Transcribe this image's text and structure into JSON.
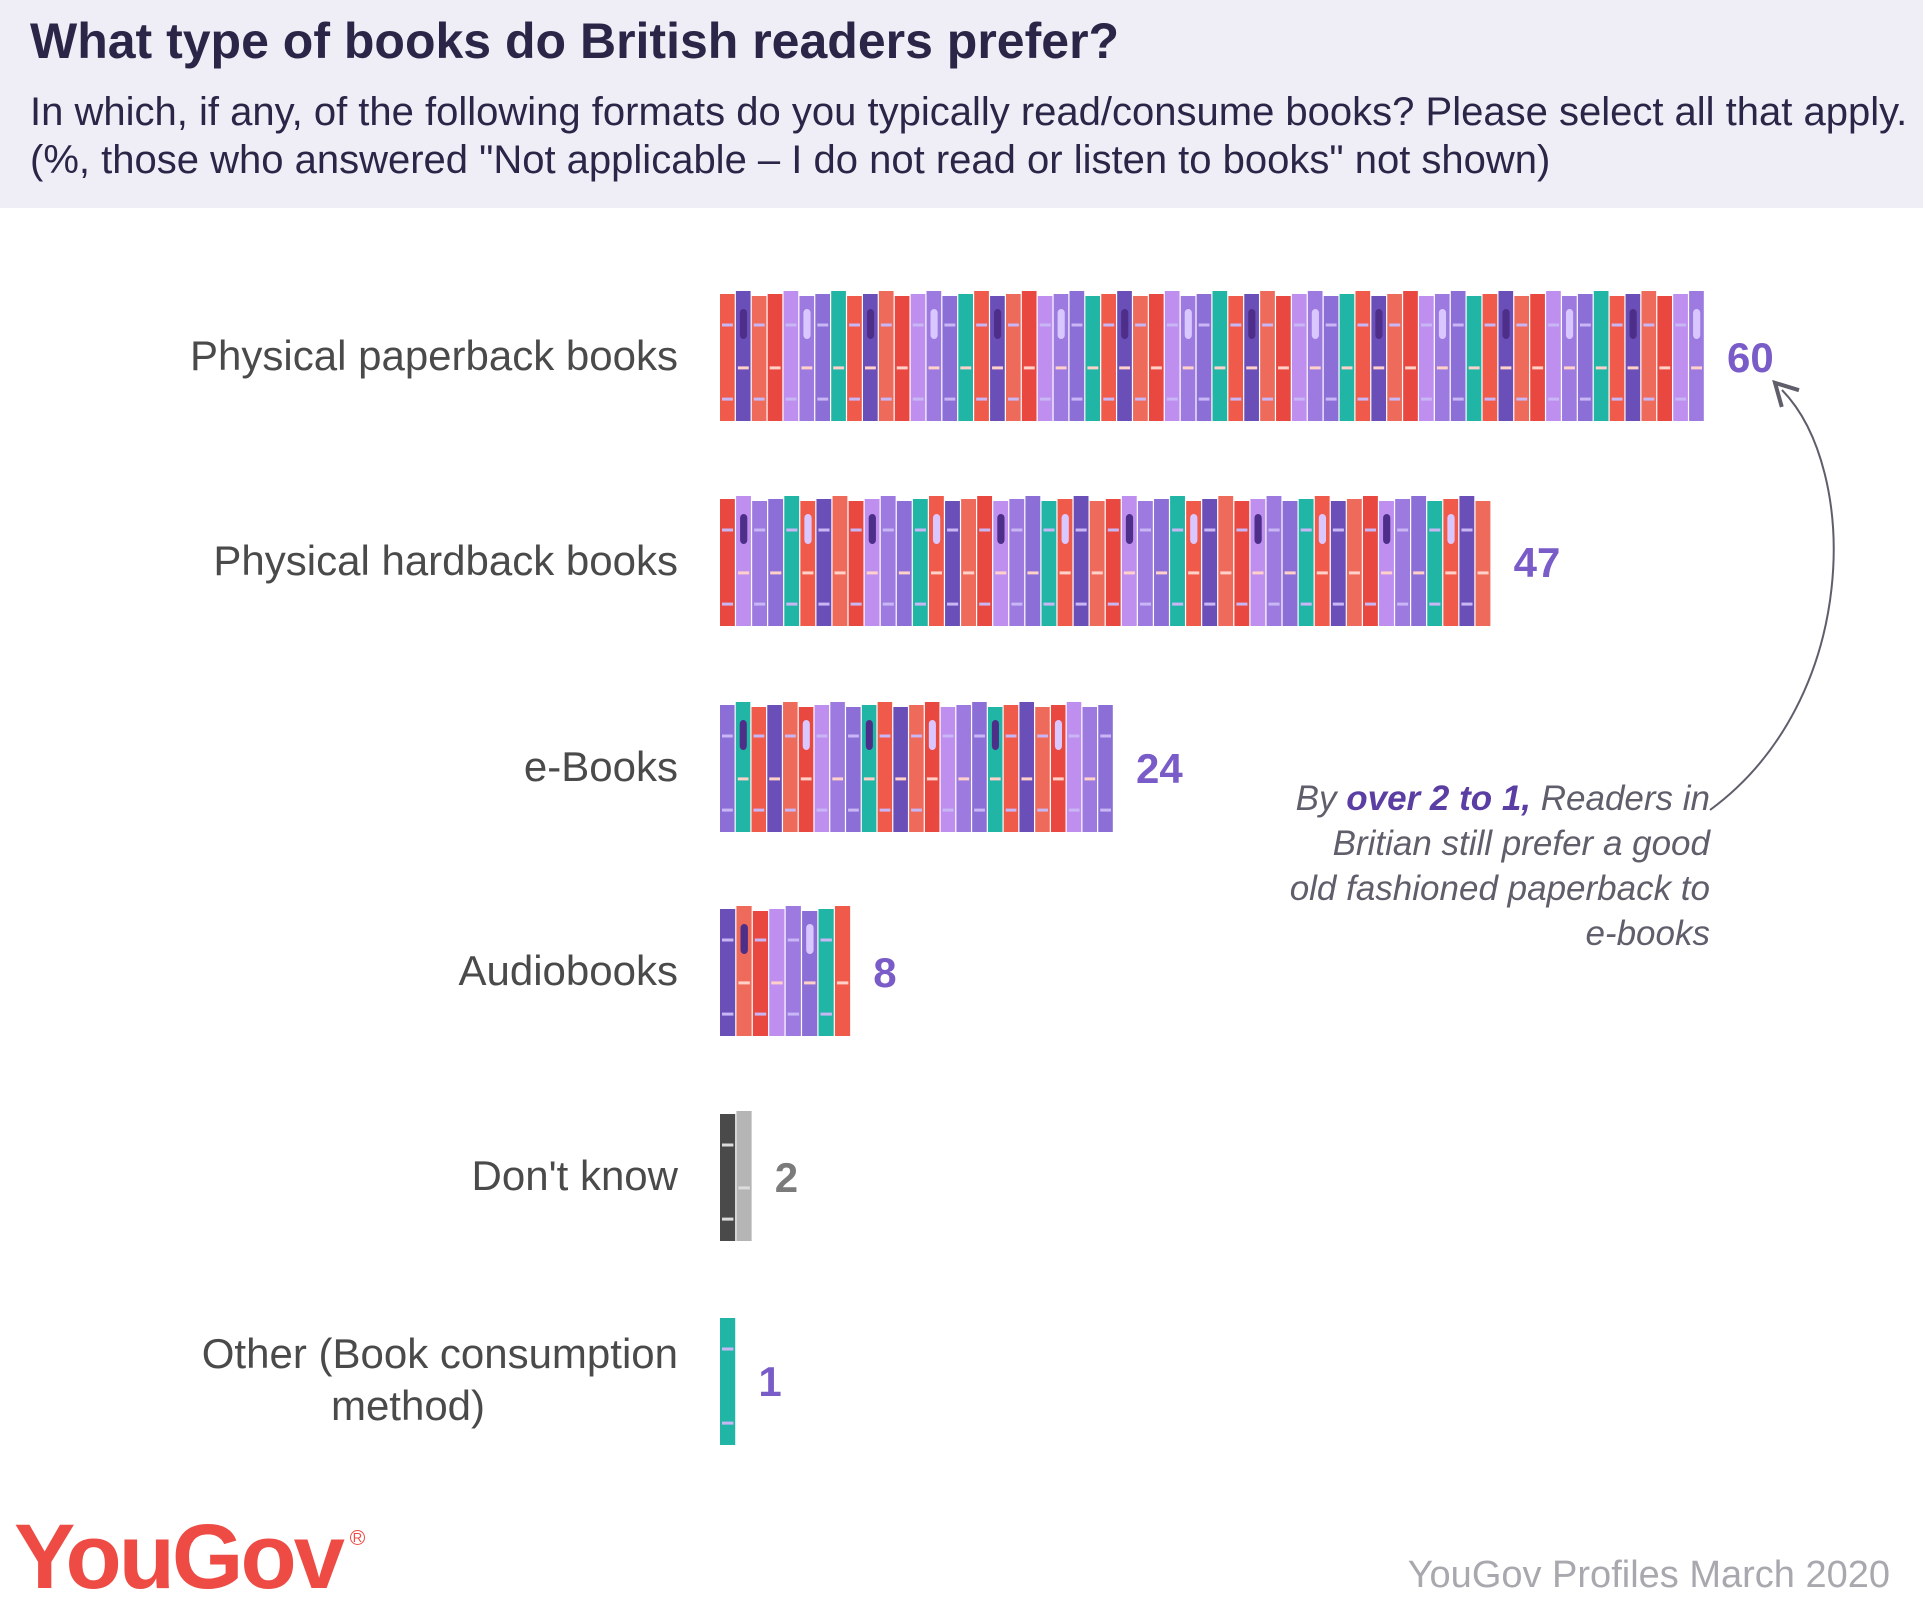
{
  "title": "What type of books do British readers prefer?",
  "subtitle": "In which, if any, of the following formats do you typically read/consume books? Please select all that apply. (%, those who answered \"Not applicable – I do not read or listen to books\" not shown)",
  "annotation": {
    "pre": "By ",
    "highlight": "over 2 to 1,",
    "post": " Readers in Britian still prefer a good old fashioned paperback to e-books"
  },
  "source": "YouGov Profiles March 2020",
  "logo": {
    "text": "YouGov",
    "mark": "R"
  },
  "colors": {
    "header_bg": "#efedf5",
    "title": "#2b2547",
    "value_label": "#7a5cc8",
    "value_label_grey": "#7b7b7b",
    "category_label": "#4a4a4a",
    "brand": "#ee4b45",
    "book_palette": [
      "#f05a4b",
      "#e8483f",
      "#8b6fd6",
      "#6a4fb8",
      "#bf8ff0",
      "#21b5a6",
      "#ee6a5a",
      "#9d7ae0"
    ],
    "grey_palette": [
      "#4a4a4a",
      "#8c8c8c",
      "#2f2f2f",
      "#b5b5b5"
    ]
  },
  "chart_data": {
    "type": "bar",
    "orientation": "horizontal",
    "title": "What type of books do British readers prefer?",
    "categories": [
      "Physical paperback books",
      "Physical hardback books",
      "e-Books",
      "Audiobooks",
      "Don't know",
      "Other (Book consumption method)"
    ],
    "category_lines": [
      [
        "Physical paperback books"
      ],
      [
        "Physical hardback books"
      ],
      [
        "e-Books"
      ],
      [
        "Audiobooks"
      ],
      [
        "Don't know"
      ],
      [
        "Other (Book consumption",
        "method)"
      ]
    ],
    "values": [
      60,
      47,
      24,
      8,
      2,
      1
    ],
    "xlim": [
      0,
      60
    ],
    "grid": false,
    "legend": "none"
  }
}
